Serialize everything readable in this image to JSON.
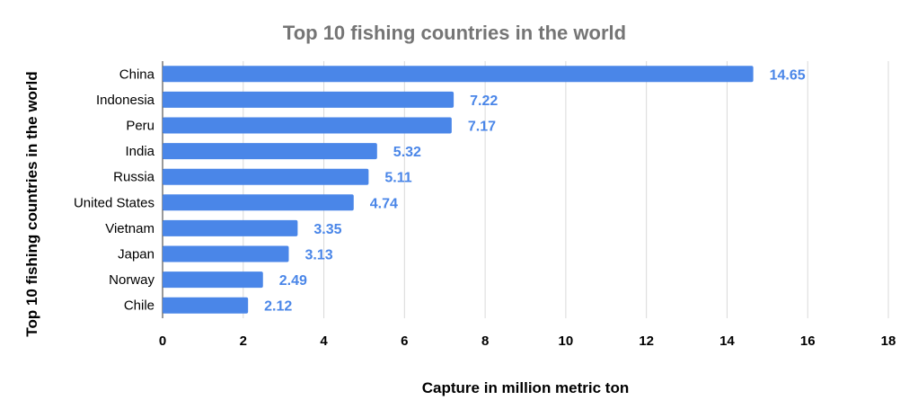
{
  "chart_data": {
    "type": "bar",
    "orientation": "horizontal",
    "title": "Top 10 fishing countries in the world",
    "xlabel": "Capture in million metric ton",
    "ylabel": "Top 10 fishing countries in the world",
    "categories": [
      "China",
      "Indonesia",
      "Peru",
      "India",
      "Russia",
      "United States",
      "Vietnam",
      "Japan",
      "Norway",
      "Chile"
    ],
    "values": [
      14.65,
      7.22,
      7.17,
      5.32,
      5.11,
      4.74,
      3.35,
      3.13,
      2.49,
      2.12
    ],
    "value_labels": [
      "14.65",
      "7.22",
      "7.17",
      "5.32",
      "5.11",
      "4.74",
      "3.35",
      "3.13",
      "2.49",
      "2.12"
    ],
    "xlim": [
      0,
      18
    ],
    "xticks": [
      "0",
      "2",
      "4",
      "6",
      "8",
      "10",
      "12",
      "14",
      "16",
      "18"
    ],
    "grid": true,
    "legend": "none",
    "bar_color": "#4a86e8",
    "data_label_color": "#4a86e8"
  }
}
